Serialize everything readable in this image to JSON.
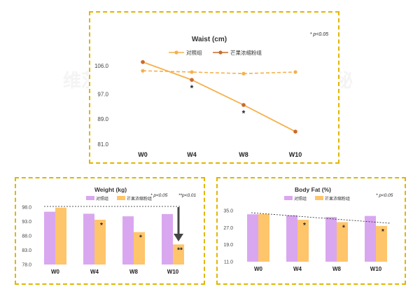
{
  "colors": {
    "border": "#e0b600",
    "control": "#f5b04a",
    "treatment": "#c96a2b",
    "control_bar": "#d9a7ef",
    "treatment_bar": "#ffc56b",
    "arrow": "#444444"
  },
  "watermark": "维茨之秘",
  "chart_data": [
    {
      "type": "line",
      "title": "Waist (cm)",
      "significance_note": "* p<0.05",
      "categories": [
        "W0",
        "W4",
        "W8",
        "W10"
      ],
      "yticks": [
        "106.0",
        "97.0",
        "89.0",
        "81.0"
      ],
      "ylim": [
        81,
        106
      ],
      "series": [
        {
          "name": "对照组",
          "values": [
            104.4,
            104.0,
            103.5,
            104.0
          ],
          "style": "dashed"
        },
        {
          "name": "芒果浓缩粉组",
          "values": [
            107.2,
            101.5,
            93.5,
            85.0
          ],
          "style": "solid"
        }
      ],
      "markers": [
        "",
        "*",
        "*",
        ""
      ]
    },
    {
      "type": "bar",
      "title": "Weight (kg)",
      "significance_notes": [
        "* p<0.05",
        "**p<0.01"
      ],
      "categories": [
        "W0",
        "W4",
        "W8",
        "W10"
      ],
      "yticks": [
        "98.0",
        "93.0",
        "88.0",
        "83.0",
        "78.0"
      ],
      "ylim": [
        78,
        98
      ],
      "series": [
        {
          "name": "对照组",
          "values": [
            96.4,
            95.7,
            94.8,
            95.6
          ]
        },
        {
          "name": "芒果浓缩粉组",
          "values": [
            97.8,
            93.6,
            89.3,
            85.0
          ]
        }
      ],
      "markers": [
        "",
        "*",
        "*",
        "**"
      ]
    },
    {
      "type": "bar",
      "title": "Body Fat (%)",
      "significance_note": "* p<0.05",
      "categories": [
        "W0",
        "W4",
        "W8",
        "W10"
      ],
      "yticks": [
        "35.0",
        "27.0",
        "19.0",
        "11.0"
      ],
      "ylim": [
        11,
        35
      ],
      "series": [
        {
          "name": "对照组",
          "values": [
            33.3,
            32.8,
            32.0,
            32.5
          ]
        },
        {
          "name": "芒果浓缩粉组",
          "values": [
            33.4,
            30.7,
            29.6,
            27.8
          ]
        }
      ],
      "markers": [
        "",
        "*",
        "*",
        "*"
      ]
    }
  ]
}
